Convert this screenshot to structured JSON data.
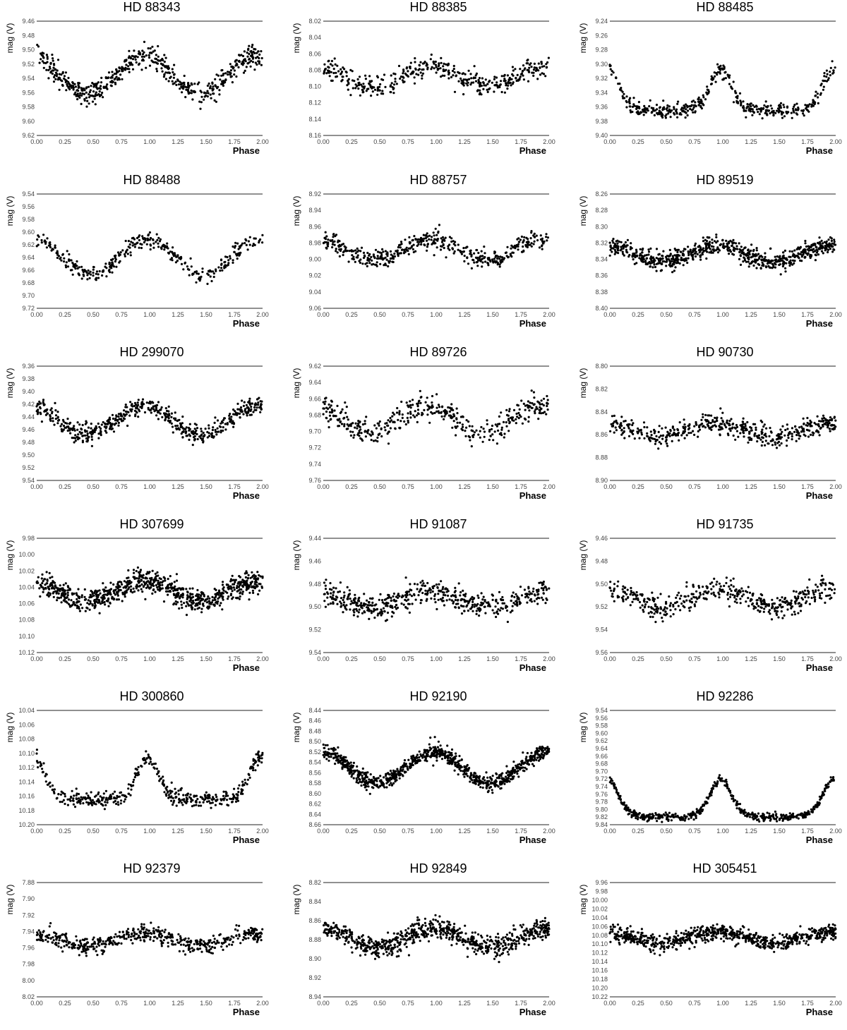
{
  "chart_data": [
    {
      "type": "scatter",
      "title": "HD 88343",
      "xlabel": "Phase",
      "ylabel": "mag (V)",
      "xlim": [
        0,
        2
      ],
      "ylim": [
        9.46,
        9.62
      ],
      "y_inverted": true,
      "x_ticks": [
        "0.00",
        "0.25",
        "0.50",
        "0.75",
        "1.00",
        "1.25",
        "1.50",
        "1.75",
        "2.00"
      ],
      "y_ticks": [
        "9.46",
        "9.48",
        "9.50",
        "9.52",
        "9.54",
        "9.56",
        "9.58",
        "9.60",
        "9.62"
      ],
      "model": {
        "mean": 9.535,
        "amp": 0.028,
        "peak_phase": 0.95,
        "sharp": 1,
        "noise": 0.014,
        "n": 560
      },
      "legend": "none",
      "grid": false
    },
    {
      "type": "scatter",
      "title": "HD 88385",
      "xlabel": "Phase",
      "ylabel": "mag (V)",
      "xlim": [
        0,
        2
      ],
      "ylim": [
        8.02,
        8.16
      ],
      "y_inverted": true,
      "x_ticks": [
        "0.00",
        "0.25",
        "0.50",
        "0.75",
        "1.00",
        "1.25",
        "1.50",
        "1.75",
        "2.00"
      ],
      "y_ticks": [
        "8.02",
        "8.04",
        "8.06",
        "8.08",
        "8.10",
        "8.12",
        "8.14",
        "8.16"
      ],
      "model": {
        "mean": 8.088,
        "amp": 0.012,
        "peak_phase": 0.95,
        "sharp": 1,
        "noise": 0.012,
        "n": 420
      },
      "legend": "none",
      "grid": false
    },
    {
      "type": "scatter",
      "title": "HD 88485",
      "xlabel": "Phase",
      "ylabel": "mag (V)",
      "xlim": [
        0,
        2
      ],
      "ylim": [
        9.24,
        9.4
      ],
      "y_inverted": true,
      "x_ticks": [
        "0.00",
        "0.25",
        "0.50",
        "0.75",
        "1.00",
        "1.25",
        "1.50",
        "1.75",
        "2.00"
      ],
      "y_ticks": [
        "9.24",
        "9.26",
        "9.28",
        "9.30",
        "9.32",
        "9.34",
        "9.36",
        "9.38",
        "9.40"
      ],
      "model": {
        "mean": 9.335,
        "amp": 0.03,
        "peak_phase": 0.98,
        "sharp": 3,
        "noise": 0.01,
        "n": 440
      },
      "legend": "none",
      "grid": false
    },
    {
      "type": "scatter",
      "title": "HD 88488",
      "xlabel": "Phase",
      "ylabel": "mag (V)",
      "xlim": [
        0,
        2
      ],
      "ylim": [
        9.54,
        9.72
      ],
      "y_inverted": true,
      "x_ticks": [
        "0.00",
        "0.25",
        "0.50",
        "0.75",
        "1.00",
        "1.25",
        "1.50",
        "1.75",
        "2.00"
      ],
      "y_ticks": [
        "9.54",
        "9.56",
        "9.58",
        "9.60",
        "9.62",
        "9.64",
        "9.66",
        "9.68",
        "9.70",
        "9.72"
      ],
      "model": {
        "mean": 9.64,
        "amp": 0.028,
        "peak_phase": 0.98,
        "sharp": 1,
        "noise": 0.011,
        "n": 360
      },
      "legend": "none",
      "grid": false
    },
    {
      "type": "scatter",
      "title": "HD 88757",
      "xlabel": "Phase",
      "ylabel": "mag (V)",
      "xlim": [
        0,
        2
      ],
      "ylim": [
        8.92,
        9.06
      ],
      "y_inverted": true,
      "x_ticks": [
        "0.00",
        "0.25",
        "0.50",
        "0.75",
        "1.00",
        "1.25",
        "1.50",
        "1.75",
        "2.00"
      ],
      "y_ticks": [
        "8.92",
        "8.94",
        "8.96",
        "8.98",
        "9.00",
        "9.02",
        "9.04",
        "9.06"
      ],
      "model": {
        "mean": 8.988,
        "amp": 0.012,
        "peak_phase": 0.95,
        "sharp": 1,
        "noise": 0.011,
        "n": 460
      },
      "legend": "none",
      "grid": false
    },
    {
      "type": "scatter",
      "title": "HD 89519",
      "xlabel": "Phase",
      "ylabel": "mag (V)",
      "xlim": [
        0,
        2
      ],
      "ylim": [
        8.26,
        8.4
      ],
      "y_inverted": true,
      "x_ticks": [
        "0.00",
        "0.25",
        "0.50",
        "0.75",
        "1.00",
        "1.25",
        "1.50",
        "1.75",
        "2.00"
      ],
      "y_ticks": [
        "8.26",
        "8.28",
        "8.30",
        "8.32",
        "8.34",
        "8.36",
        "8.38",
        "8.40"
      ],
      "model": {
        "mean": 8.333,
        "amp": 0.01,
        "peak_phase": 0.95,
        "sharp": 1,
        "noise": 0.01,
        "n": 720
      },
      "legend": "none",
      "grid": false
    },
    {
      "type": "scatter",
      "title": "HD 299070",
      "xlabel": "Phase",
      "ylabel": "mag (V)",
      "xlim": [
        0,
        2
      ],
      "ylim": [
        9.36,
        9.54
      ],
      "y_inverted": true,
      "x_ticks": [
        "0.00",
        "0.25",
        "0.50",
        "0.75",
        "1.00",
        "1.25",
        "1.50",
        "1.75",
        "2.00"
      ],
      "y_ticks": [
        "9.36",
        "9.38",
        "9.40",
        "9.42",
        "9.44",
        "9.46",
        "9.48",
        "9.50",
        "9.52",
        "9.54"
      ],
      "model": {
        "mean": 9.445,
        "amp": 0.022,
        "peak_phase": 0.95,
        "sharp": 1,
        "noise": 0.013,
        "n": 560
      },
      "legend": "none",
      "grid": false
    },
    {
      "type": "scatter",
      "title": "HD 89726",
      "xlabel": "Phase",
      "ylabel": "mag (V)",
      "xlim": [
        0,
        2
      ],
      "ylim": [
        9.62,
        9.76
      ],
      "y_inverted": true,
      "x_ticks": [
        "0.00",
        "0.25",
        "0.50",
        "0.75",
        "1.00",
        "1.25",
        "1.50",
        "1.75",
        "2.00"
      ],
      "y_ticks": [
        "9.62",
        "9.64",
        "9.66",
        "9.68",
        "9.70",
        "9.72",
        "9.74",
        "9.76"
      ],
      "model": {
        "mean": 9.685,
        "amp": 0.016,
        "peak_phase": 0.92,
        "sharp": 1,
        "noise": 0.014,
        "n": 420
      },
      "legend": "none",
      "grid": false
    },
    {
      "type": "scatter",
      "title": "HD 90730",
      "xlabel": "Phase",
      "ylabel": "mag (V)",
      "xlim": [
        0,
        2
      ],
      "ylim": [
        8.8,
        8.9
      ],
      "y_inverted": true,
      "x_ticks": [
        "0.00",
        "0.25",
        "0.50",
        "0.75",
        "1.00",
        "1.25",
        "1.50",
        "1.75",
        "2.00"
      ],
      "y_ticks": [
        "8.80",
        "8.82",
        "8.84",
        "8.86",
        "8.88",
        "8.90"
      ],
      "model": {
        "mean": 8.856,
        "amp": 0.006,
        "peak_phase": 0.95,
        "sharp": 1,
        "noise": 0.008,
        "n": 480
      },
      "legend": "none",
      "grid": false
    },
    {
      "type": "scatter",
      "title": "HD 307699",
      "xlabel": "Phase",
      "ylabel": "mag (V)",
      "xlim": [
        0,
        2
      ],
      "ylim": [
        9.98,
        10.12
      ],
      "y_inverted": true,
      "x_ticks": [
        "0.00",
        "0.25",
        "0.50",
        "0.75",
        "1.00",
        "1.25",
        "1.50",
        "1.75",
        "2.00"
      ],
      "y_ticks": [
        "9.98",
        "10.00",
        "10.02",
        "10.04",
        "10.06",
        "10.08",
        "10.10",
        "10.12"
      ],
      "model": {
        "mean": 10.045,
        "amp": 0.012,
        "peak_phase": 0.95,
        "sharp": 1,
        "noise": 0.013,
        "n": 820
      },
      "legend": "none",
      "grid": false
    },
    {
      "type": "scatter",
      "title": "HD 91087",
      "xlabel": "Phase",
      "ylabel": "mag (V)",
      "xlim": [
        0,
        2
      ],
      "ylim": [
        9.44,
        9.54
      ],
      "y_inverted": true,
      "x_ticks": [
        "0.00",
        "0.25",
        "0.50",
        "0.75",
        "1.00",
        "1.25",
        "1.50",
        "1.75",
        "2.00"
      ],
      "y_ticks": [
        "9.44",
        "9.46",
        "9.48",
        "9.50",
        "9.52",
        "9.54"
      ],
      "model": {
        "mean": 9.494,
        "amp": 0.006,
        "peak_phase": 0.95,
        "sharp": 1,
        "noise": 0.009,
        "n": 520
      },
      "legend": "none",
      "grid": false
    },
    {
      "type": "scatter",
      "title": "HD 91735",
      "xlabel": "Phase",
      "ylabel": "mag (V)",
      "xlim": [
        0,
        2
      ],
      "ylim": [
        9.46,
        9.56
      ],
      "y_inverted": true,
      "x_ticks": [
        "0.00",
        "0.25",
        "0.50",
        "0.75",
        "1.00",
        "1.25",
        "1.50",
        "1.75",
        "2.00"
      ],
      "y_ticks": [
        "9.46",
        "9.48",
        "9.50",
        "9.52",
        "9.54",
        "9.56"
      ],
      "model": {
        "mean": 9.512,
        "amp": 0.008,
        "peak_phase": 0.97,
        "sharp": 1,
        "noise": 0.009,
        "n": 460
      },
      "legend": "none",
      "grid": false
    },
    {
      "type": "scatter",
      "title": "HD 300860",
      "xlabel": "Phase",
      "ylabel": "mag (V)",
      "xlim": [
        0,
        2
      ],
      "ylim": [
        10.04,
        10.2
      ],
      "y_inverted": true,
      "x_ticks": [
        "0.00",
        "0.25",
        "0.50",
        "0.75",
        "1.00",
        "1.25",
        "1.50",
        "1.75",
        "2.00"
      ],
      "y_ticks": [
        "10.04",
        "10.06",
        "10.08",
        "10.10",
        "10.12",
        "10.14",
        "10.16",
        "10.18",
        "10.20"
      ],
      "model": {
        "mean": 10.135,
        "amp": 0.03,
        "peak_phase": 0.98,
        "sharp": 3,
        "noise": 0.01,
        "n": 440
      },
      "legend": "none",
      "grid": false
    },
    {
      "type": "scatter",
      "title": "HD 92190",
      "xlabel": "Phase",
      "ylabel": "mag (V)",
      "xlim": [
        0,
        2
      ],
      "ylim": [
        8.44,
        8.66
      ],
      "y_inverted": true,
      "x_ticks": [
        "0.00",
        "0.25",
        "0.50",
        "0.75",
        "1.00",
        "1.25",
        "1.50",
        "1.75",
        "2.00"
      ],
      "y_ticks": [
        "8.44",
        "8.46",
        "8.48",
        "8.50",
        "8.52",
        "8.54",
        "8.56",
        "8.58",
        "8.60",
        "8.62",
        "8.64",
        "8.66"
      ],
      "model": {
        "mean": 8.55,
        "amp": 0.03,
        "peak_phase": 0.98,
        "sharp": 1,
        "noise": 0.014,
        "n": 900
      },
      "legend": "none",
      "grid": false
    },
    {
      "type": "scatter",
      "title": "HD 92286",
      "xlabel": "Phase",
      "ylabel": "mag (V)",
      "xlim": [
        0,
        2
      ],
      "ylim": [
        9.54,
        9.84
      ],
      "y_inverted": true,
      "x_ticks": [
        "0.00",
        "0.25",
        "0.50",
        "0.75",
        "1.00",
        "1.25",
        "1.50",
        "1.75",
        "2.00"
      ],
      "y_ticks": [
        "9.54",
        "9.56",
        "9.58",
        "9.60",
        "9.62",
        "9.64",
        "9.66",
        "9.68",
        "9.70",
        "9.72",
        "9.74",
        "9.76",
        "9.78",
        "9.80",
        "9.82",
        "9.84"
      ],
      "model": {
        "mean": 9.77,
        "amp": 0.05,
        "peak_phase": 0.98,
        "sharp": 3,
        "noise": 0.009,
        "n": 560
      },
      "legend": "none",
      "grid": false
    },
    {
      "type": "scatter",
      "title": "HD 92379",
      "xlabel": "Phase",
      "ylabel": "mag (V)",
      "xlim": [
        0,
        2
      ],
      "ylim": [
        7.88,
        8.02
      ],
      "y_inverted": true,
      "x_ticks": [
        "0.00",
        "0.25",
        "0.50",
        "0.75",
        "1.00",
        "1.25",
        "1.50",
        "1.75",
        "2.00"
      ],
      "y_ticks": [
        "7.88",
        "7.90",
        "7.92",
        "7.94",
        "7.96",
        "7.98",
        "8.00",
        "8.02"
      ],
      "model": {
        "mean": 7.95,
        "amp": 0.008,
        "peak_phase": 0.95,
        "sharp": 1,
        "noise": 0.009,
        "n": 520
      },
      "legend": "none",
      "grid": false
    },
    {
      "type": "scatter",
      "title": "HD 92849",
      "xlabel": "Phase",
      "ylabel": "mag (V)",
      "xlim": [
        0,
        2
      ],
      "ylim": [
        8.82,
        8.94
      ],
      "y_inverted": true,
      "x_ticks": [
        "0.00",
        "0.25",
        "0.50",
        "0.75",
        "1.00",
        "1.25",
        "1.50",
        "1.75",
        "2.00"
      ],
      "y_ticks": [
        "8.82",
        "8.84",
        "8.86",
        "8.88",
        "8.90",
        "8.92",
        "8.94"
      ],
      "model": {
        "mean": 8.878,
        "amp": 0.01,
        "peak_phase": 0.98,
        "sharp": 1,
        "noise": 0.01,
        "n": 760
      },
      "legend": "none",
      "grid": false
    },
    {
      "type": "scatter",
      "title": "HD 305451",
      "xlabel": "Phase",
      "ylabel": "mag (V)",
      "xlim": [
        0,
        2
      ],
      "ylim": [
        9.96,
        10.22
      ],
      "y_inverted": true,
      "x_ticks": [
        "0.00",
        "0.25",
        "0.50",
        "0.75",
        "1.00",
        "1.25",
        "1.50",
        "1.75",
        "2.00"
      ],
      "y_ticks": [
        "9.96",
        "9.98",
        "10.00",
        "10.02",
        "10.04",
        "10.06",
        "10.08",
        "10.10",
        "10.12",
        "10.14",
        "10.16",
        "10.18",
        "10.20",
        "10.22"
      ],
      "model": {
        "mean": 10.085,
        "amp": 0.012,
        "peak_phase": 0.95,
        "sharp": 1,
        "noise": 0.016,
        "n": 760
      },
      "legend": "none",
      "grid": false
    }
  ]
}
